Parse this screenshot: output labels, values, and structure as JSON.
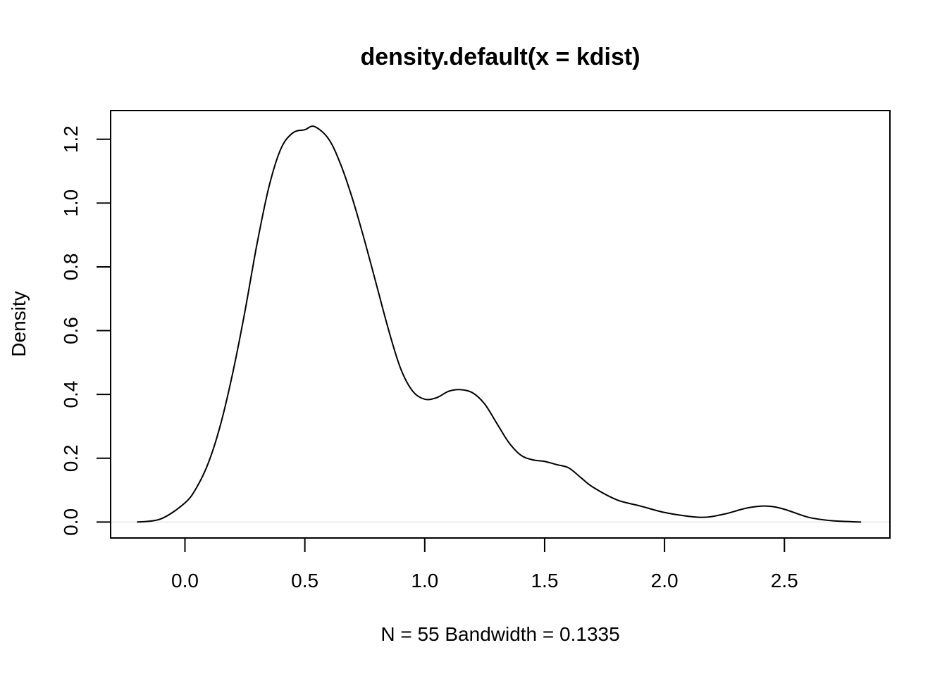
{
  "chart_data": {
    "type": "line",
    "title": "density.default(x = kdist)",
    "xlabel": "N = 55   Bandwidth = 0.1335",
    "ylabel": "Density",
    "xlim": [
      -0.31,
      2.94
    ],
    "ylim": [
      -0.05,
      1.29
    ],
    "x_ticks": [
      0.0,
      0.5,
      1.0,
      1.5,
      2.0,
      2.5
    ],
    "x_tick_labels": [
      "0.0",
      "0.5",
      "1.0",
      "1.5",
      "2.0",
      "2.5"
    ],
    "y_ticks": [
      0.0,
      0.2,
      0.4,
      0.6,
      0.8,
      1.0,
      1.2
    ],
    "y_tick_labels": [
      "0.0",
      "0.2",
      "0.4",
      "0.6",
      "0.8",
      "1.0",
      "1.2"
    ],
    "grid": false,
    "baseline": 0.0,
    "series": [
      {
        "x": [
          -0.2,
          -0.1,
          0.0,
          0.05,
          0.1,
          0.15,
          0.2,
          0.25,
          0.3,
          0.35,
          0.4,
          0.45,
          0.5,
          0.54,
          0.6,
          0.65,
          0.7,
          0.75,
          0.8,
          0.85,
          0.9,
          0.95,
          1.0,
          1.05,
          1.1,
          1.15,
          1.2,
          1.25,
          1.3,
          1.35,
          1.4,
          1.45,
          1.5,
          1.55,
          1.6,
          1.65,
          1.7,
          1.8,
          1.9,
          2.0,
          2.1,
          2.17,
          2.25,
          2.35,
          2.43,
          2.5,
          2.6,
          2.7,
          2.82
        ],
        "y": [
          0.0,
          0.01,
          0.06,
          0.11,
          0.19,
          0.31,
          0.47,
          0.66,
          0.87,
          1.05,
          1.17,
          1.22,
          1.23,
          1.24,
          1.2,
          1.12,
          1.01,
          0.88,
          0.74,
          0.6,
          0.48,
          0.41,
          0.385,
          0.39,
          0.41,
          0.415,
          0.405,
          0.37,
          0.31,
          0.25,
          0.21,
          0.195,
          0.19,
          0.18,
          0.17,
          0.14,
          0.11,
          0.07,
          0.05,
          0.03,
          0.018,
          0.015,
          0.025,
          0.045,
          0.05,
          0.04,
          0.015,
          0.004,
          0.0
        ]
      }
    ]
  }
}
